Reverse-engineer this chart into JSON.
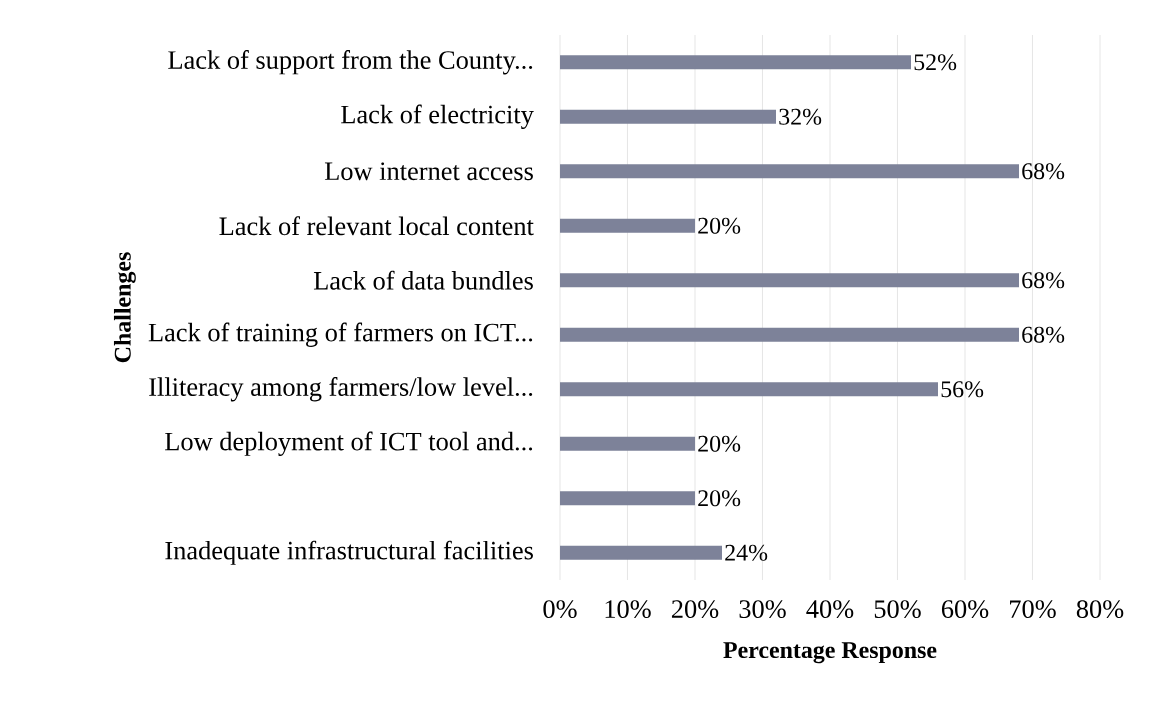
{
  "chart_data": {
    "type": "bar",
    "orientation": "horizontal",
    "xlabel": "Percentage Response",
    "ylabel": "Challenges",
    "categories": [
      "Lack of support from the County...",
      "Lack of electricity",
      "Low internet access",
      "Lack of relevant local content",
      "Lack of data bundles",
      "Lack of training of farmers on ICT...",
      "Illiteracy among farmers/low level...",
      "Low deployment of ICT tool and...",
      null,
      "Inadequate infrastructural facilities"
    ],
    "values": [
      52,
      32,
      68,
      20,
      68,
      68,
      56,
      20,
      20,
      24
    ],
    "value_labels": [
      "52%",
      "32%",
      "68%",
      "20%",
      "68%",
      "68%",
      "56%",
      "20%",
      "20%",
      "24%"
    ],
    "color": "#7d8299",
    "xlim": [
      0,
      80
    ],
    "xticks": [
      {
        "value": 0,
        "label": "0%"
      },
      {
        "value": 10,
        "label": "10%"
      },
      {
        "value": 20,
        "label": "20%"
      },
      {
        "value": 30,
        "label": "30%"
      },
      {
        "value": 40,
        "label": "40%"
      },
      {
        "value": 50,
        "label": "50%"
      },
      {
        "value": 60,
        "label": "60%"
      },
      {
        "value": 70,
        "label": "70%"
      },
      {
        "value": 80,
        "label": "80%"
      }
    ],
    "grid": "x"
  }
}
